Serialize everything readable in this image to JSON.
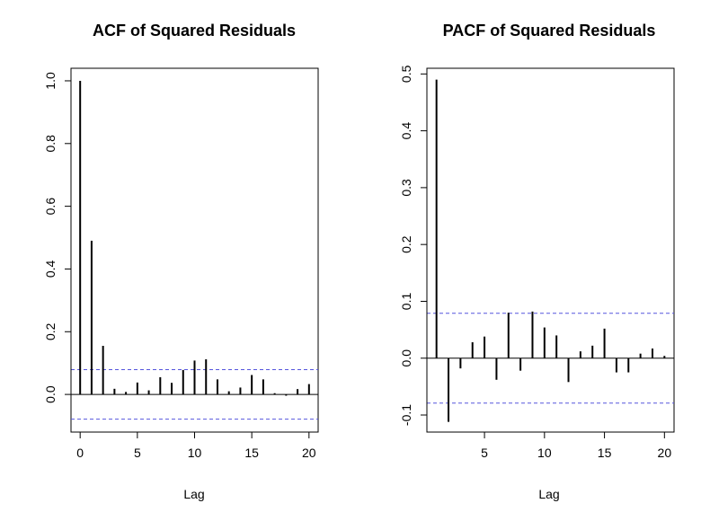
{
  "colors": {
    "bar": "#000000",
    "confidence_band": "#5555dd",
    "frame": "#000000",
    "background": "#ffffff"
  },
  "chart_data": [
    {
      "type": "bar",
      "subtype": "correlogram",
      "title": "ACF of Squared Residuals",
      "xlabel": "Lag",
      "ylabel": "",
      "xlim": [
        -0.8,
        20.8
      ],
      "ylim": [
        -0.12,
        1.04
      ],
      "xticks": [
        0,
        5,
        10,
        15,
        20
      ],
      "yticks": [
        0.0,
        0.2,
        0.4,
        0.6,
        0.8,
        1.0
      ],
      "ytick_labels": [
        "0.0",
        "0.2",
        "0.4",
        "0.6",
        "0.8",
        "1.0"
      ],
      "zero_line": true,
      "confidence_bounds": [
        0.079,
        -0.079
      ],
      "x": [
        0,
        1,
        2,
        3,
        4,
        5,
        6,
        7,
        8,
        9,
        10,
        11,
        12,
        13,
        14,
        15,
        16,
        17,
        18,
        19,
        20
      ],
      "values": [
        1.0,
        0.49,
        0.155,
        0.018,
        0.008,
        0.038,
        0.013,
        0.055,
        0.037,
        0.078,
        0.108,
        0.112,
        0.048,
        0.01,
        0.022,
        0.062,
        0.048,
        0.004,
        -0.004,
        0.017,
        0.033
      ],
      "grid": false,
      "legend": "none"
    },
    {
      "type": "bar",
      "subtype": "correlogram",
      "title": "PACF of Squared Residuals",
      "xlabel": "Lag",
      "ylabel": "",
      "xlim": [
        0.2,
        20.8
      ],
      "ylim": [
        -0.13,
        0.51
      ],
      "xticks": [
        5,
        10,
        15,
        20
      ],
      "yticks": [
        -0.1,
        0.0,
        0.1,
        0.2,
        0.3,
        0.4,
        0.5
      ],
      "ytick_labels": [
        "-0.1",
        "0.0",
        "0.1",
        "0.2",
        "0.3",
        "0.4",
        "0.5"
      ],
      "zero_line": true,
      "confidence_bounds": [
        0.079,
        -0.079
      ],
      "x": [
        1,
        2,
        3,
        4,
        5,
        6,
        7,
        8,
        9,
        10,
        11,
        12,
        13,
        14,
        15,
        16,
        17,
        18,
        19,
        20
      ],
      "values": [
        0.49,
        -0.112,
        -0.018,
        0.028,
        0.038,
        -0.038,
        0.08,
        -0.022,
        0.082,
        0.054,
        0.04,
        -0.042,
        0.012,
        0.022,
        0.052,
        -0.025,
        -0.025,
        0.008,
        0.017,
        0.004
      ],
      "grid": false,
      "legend": "none"
    }
  ]
}
